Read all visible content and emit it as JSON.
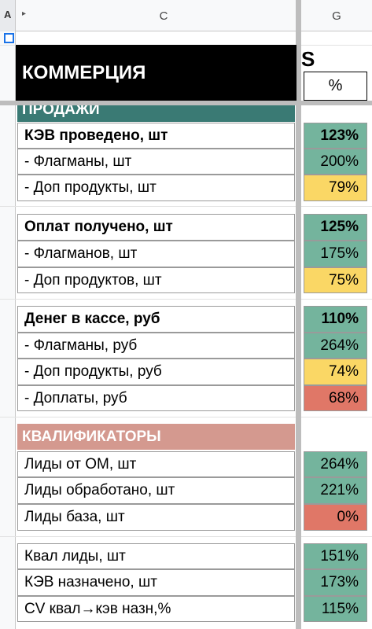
{
  "header": {
    "col_c": "C",
    "col_g": "G",
    "corner_a": "A"
  },
  "title": "КОММЕРЦИЯ",
  "title_overflow_char": "S",
  "pct_header": "%",
  "sections": {
    "sales": "ПРОДАЖИ",
    "qualifiers": "КВАЛИФИКАТОРЫ"
  },
  "rows": [
    {
      "label": "КЭВ проведено, шт",
      "value": "123%",
      "color": "#74b49d"
    },
    {
      "label": "- Флагманы, шт",
      "value": "200%",
      "color": "#74b49d"
    },
    {
      "label": "- Доп продукты, шт",
      "value": "79%",
      "color": "#fad765"
    },
    {
      "label": "Оплат получено, шт",
      "value": "125%",
      "color": "#74b49d"
    },
    {
      "label": "- Флагманов, шт",
      "value": "175%",
      "color": "#74b49d"
    },
    {
      "label": "- Доп продуктов, шт",
      "value": "75%",
      "color": "#fad765"
    },
    {
      "label": "Денег в кассе, руб",
      "value": "110%",
      "color": "#74b49d"
    },
    {
      "label": "- Флагманы, руб",
      "value": "264%",
      "color": "#74b49d"
    },
    {
      "label": "- Доп продукты, руб",
      "value": "74%",
      "color": "#fad765"
    },
    {
      "label": "- Доплаты, руб",
      "value": "68%",
      "color": "#e07767"
    },
    {
      "label": "Лиды от ОМ, шт",
      "value": "264%",
      "color": "#74b49d"
    },
    {
      "label": "Лиды обработано, шт",
      "value": "221%",
      "color": "#74b49d"
    },
    {
      "label": "Лиды база, шт",
      "value": "0%",
      "color": "#e07767"
    },
    {
      "label": "Квал лиды, шт",
      "value": "151%",
      "color": "#74b49d"
    },
    {
      "label": "КЭВ назначено, шт",
      "value": "173%",
      "color": "#74b49d"
    },
    {
      "label": "CV квал→кэв назн,%",
      "value": "115%",
      "color": "#74b49d"
    }
  ],
  "colors": {
    "sales_header": "#3a7a74",
    "qualifiers_header": "#d4998f",
    "title_bg": "#000000"
  }
}
